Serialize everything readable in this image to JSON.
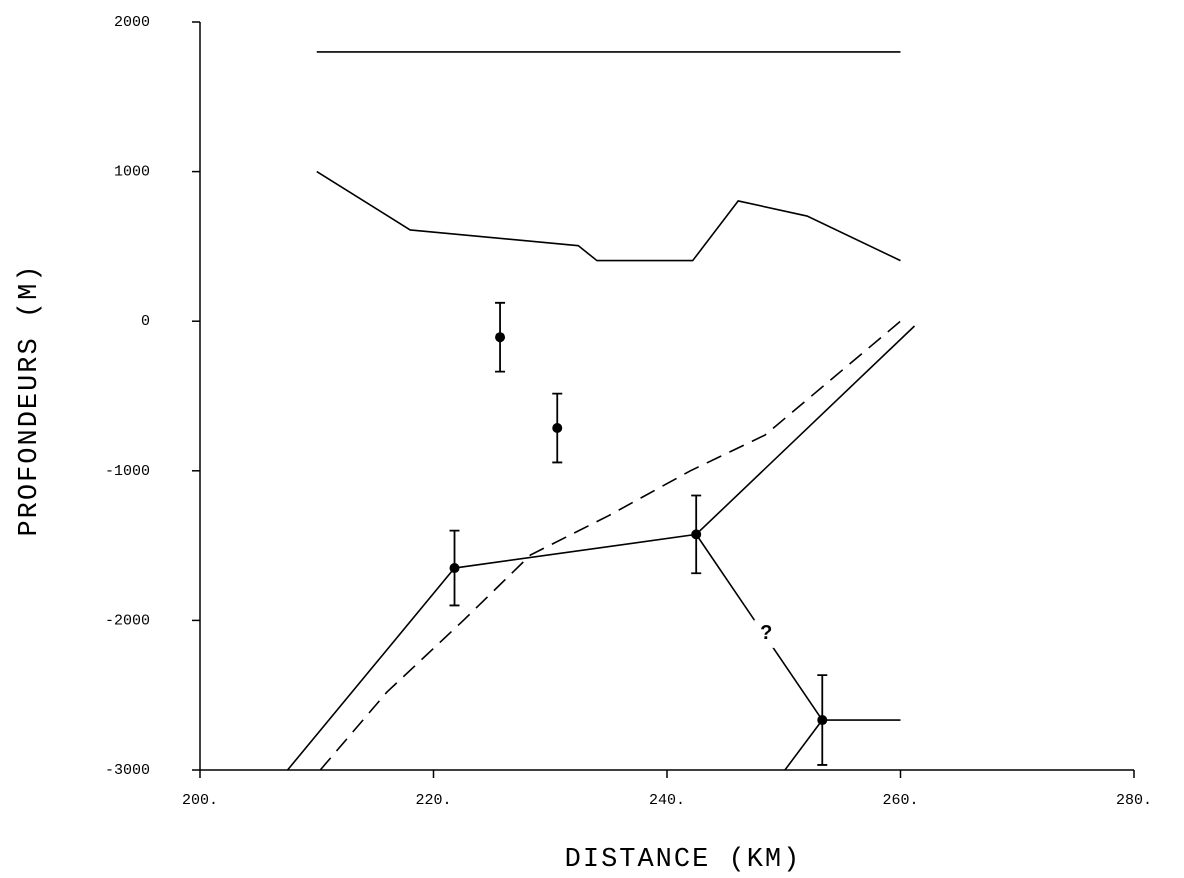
{
  "chart_data": {
    "type": "line",
    "x_label": "DISTANCE (KM)",
    "y_label": "PROFONDEURS (M)",
    "xlim": [
      200,
      280
    ],
    "ylim": [
      -3000,
      2000
    ],
    "xticks": [
      {
        "value": 200,
        "label": "200."
      },
      {
        "value": 220,
        "label": "220."
      },
      {
        "value": 240,
        "label": "240."
      },
      {
        "value": 260,
        "label": "260."
      },
      {
        "value": 280,
        "label": "280."
      }
    ],
    "yticks": [
      2000,
      1000,
      0,
      -1000,
      -2000,
      -3000
    ],
    "color": "#000000",
    "series": [
      {
        "x": [
          210,
          260
        ],
        "values": [
          1800,
          1800
        ],
        "dash": false
      },
      {
        "x": [
          210,
          218,
          232.4,
          234,
          242.2,
          246.1,
          252,
          260
        ],
        "values": [
          1000,
          610,
          505,
          405,
          405,
          804,
          703,
          405
        ],
        "dash": false
      },
      {
        "x": [
          210.3,
          216,
          222.6,
          228.3,
          235,
          242,
          248.4,
          260
        ],
        "values": [
          -3000,
          -2480,
          -1997,
          -1563,
          -1300,
          -1000,
          -761,
          0
        ],
        "dash": true
      },
      {
        "x": [
          207.5,
          221.8,
          242.5,
          261.2
        ],
        "values": [
          -3000,
          -1650,
          -1425,
          -32
        ],
        "dash": false
      },
      {
        "x": [
          242.5,
          253.3,
          260
        ],
        "values": [
          -1425,
          -2666,
          -2666
        ],
        "dash": false
      },
      {
        "x": [
          250.1,
          253.3
        ],
        "values": [
          -3000,
          -2666
        ],
        "dash": false
      },
      {
        "x": [
          225.7,
          230.6,
          221.8,
          242.5,
          253.3
        ],
        "values": [
          -107,
          -714,
          -1650,
          -1425,
          -2666
        ],
        "errors": [
          230,
          230,
          250,
          260,
          300
        ],
        "markers": true,
        "line": false
      }
    ],
    "annotations": [
      {
        "text": "?",
        "x": 248.5,
        "y": -2090
      }
    ]
  }
}
